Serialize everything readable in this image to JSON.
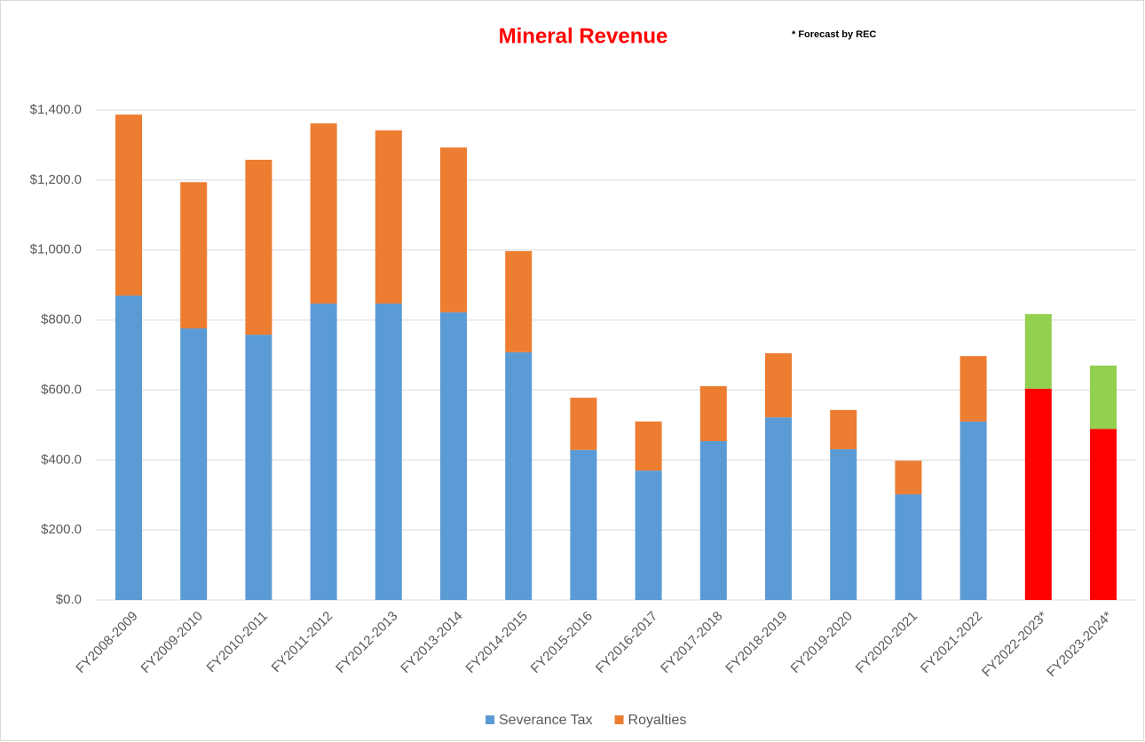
{
  "chart_data": {
    "type": "bar",
    "stacked": true,
    "title": "Mineral Revenue",
    "annotation": "* Forecast by REC",
    "categories": [
      "FY2008-2009",
      "FY2009-2010",
      "FY2010-2011",
      "FY2011-2012",
      "FY2012-2013",
      "FY2013-2014",
      "FY2014-2015",
      "FY2015-2016",
      "FY2016-2017",
      "FY2017-2018",
      "FY2018-2019",
      "FY2019-2020",
      "FY2020-2021",
      "FY2021-2022",
      "FY2022-2023*",
      "FY2023-2024*"
    ],
    "series": [
      {
        "name": "Severance Tax",
        "color": "#5b9bd5",
        "colors": [
          "#5b9bd5",
          "#5b9bd5",
          "#5b9bd5",
          "#5b9bd5",
          "#5b9bd5",
          "#5b9bd5",
          "#5b9bd5",
          "#5b9bd5",
          "#5b9bd5",
          "#5b9bd5",
          "#5b9bd5",
          "#5b9bd5",
          "#5b9bd5",
          "#5b9bd5",
          "#ff0000",
          "#ff0000"
        ],
        "values": [
          870,
          776,
          758,
          847,
          847,
          822,
          708,
          429,
          370,
          454,
          522,
          431,
          302,
          510,
          604,
          489
        ]
      },
      {
        "name": "Royalties",
        "color": "#ed7d31",
        "colors": [
          "#ed7d31",
          "#ed7d31",
          "#ed7d31",
          "#ed7d31",
          "#ed7d31",
          "#ed7d31",
          "#ed7d31",
          "#ed7d31",
          "#ed7d31",
          "#ed7d31",
          "#ed7d31",
          "#ed7d31",
          "#ed7d31",
          "#ed7d31",
          "#92d050",
          "#92d050"
        ],
        "values": [
          517,
          418,
          500,
          515,
          495,
          471,
          289,
          149,
          140,
          157,
          183,
          112,
          96,
          187,
          213,
          181
        ]
      }
    ],
    "ylim": [
      0,
      1400
    ],
    "yticks": [
      {
        "value": 0,
        "label": "$0.0"
      },
      {
        "value": 200,
        "label": "$200.0"
      },
      {
        "value": 400,
        "label": "$400.0"
      },
      {
        "value": 600,
        "label": "$600.0"
      },
      {
        "value": 800,
        "label": "$800.0"
      },
      {
        "value": 1000,
        "label": "$1,000.0"
      },
      {
        "value": 1200,
        "label": "$1,200.0"
      },
      {
        "value": 1400,
        "label": "$1,400.0"
      }
    ],
    "grid": true,
    "legend": "bottom"
  }
}
